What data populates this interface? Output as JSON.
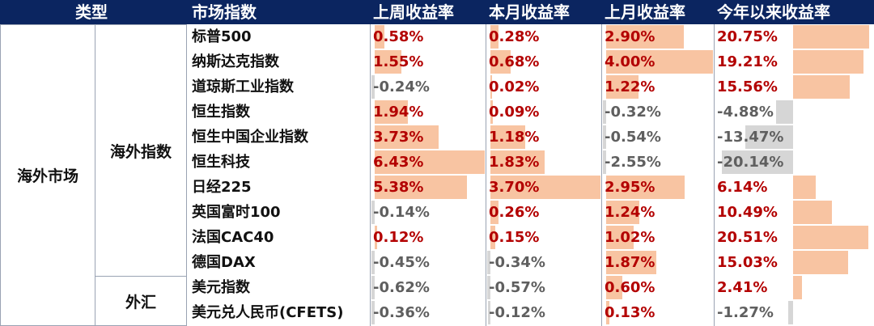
{
  "header": {
    "type": "类型",
    "index": "市场指数",
    "week": "上周收益率",
    "month": "本月收益率",
    "last_month": "上月收益率",
    "ytd": "今年以来收益率"
  },
  "categories": {
    "level1": "海外市场",
    "level2_overseas": "海外指数",
    "level2_fx": "外汇"
  },
  "colors": {
    "header_bg": "#0b2560",
    "positive_bar": "#f8c4a2",
    "negative_bar": "#d6d6d6",
    "positive_text": "#b30000",
    "negative_text": "#5f5f5f"
  },
  "chart_data": {
    "type": "table",
    "columns": [
      "上周收益率",
      "本月收益率",
      "上月收益率",
      "今年以来收益率"
    ],
    "rows": [
      {
        "name": "标普500",
        "week": 0.58,
        "month": 0.28,
        "last_month": 2.9,
        "ytd": 20.75,
        "week_text": "0.58%",
        "month_text": "0.28%",
        "last_month_text": "2.90%",
        "ytd_text": "20.75%"
      },
      {
        "name": "纳斯达克指数",
        "week": 1.55,
        "month": 0.68,
        "last_month": 4.0,
        "ytd": 19.21,
        "week_text": "1.55%",
        "month_text": "0.68%",
        "last_month_text": "4.00%",
        "ytd_text": "19.21%"
      },
      {
        "name": "道琼斯工业指数",
        "week": -0.24,
        "month": 0.02,
        "last_month": 1.22,
        "ytd": 15.56,
        "week_text": "-0.24%",
        "month_text": "0.02%",
        "last_month_text": "1.22%",
        "ytd_text": "15.56%"
      },
      {
        "name": "恒生指数",
        "week": 1.94,
        "month": 0.09,
        "last_month": -0.32,
        "ytd": -4.88,
        "week_text": "1.94%",
        "month_text": "0.09%",
        "last_month_text": "-0.32%",
        "ytd_text": "-4.88%"
      },
      {
        "name": "恒生中国企业指数",
        "week": 3.73,
        "month": 1.18,
        "last_month": -0.54,
        "ytd": -13.47,
        "week_text": "3.73%",
        "month_text": "1.18%",
        "last_month_text": "-0.54%",
        "ytd_text": "-13.47%"
      },
      {
        "name": "恒生科技",
        "week": 6.43,
        "month": 1.83,
        "last_month": -2.55,
        "ytd": -20.14,
        "week_text": "6.43%",
        "month_text": "1.83%",
        "last_month_text": "-2.55%",
        "ytd_text": "-20.14%"
      },
      {
        "name": "日经225",
        "week": 5.38,
        "month": 3.7,
        "last_month": 2.95,
        "ytd": 6.14,
        "week_text": "5.38%",
        "month_text": "3.70%",
        "last_month_text": "2.95%",
        "ytd_text": "6.14%"
      },
      {
        "name": "英国富时100",
        "week": -0.14,
        "month": 0.26,
        "last_month": 1.24,
        "ytd": 10.49,
        "week_text": "-0.14%",
        "month_text": "0.26%",
        "last_month_text": "1.24%",
        "ytd_text": "10.49%"
      },
      {
        "name": "法国CAC40",
        "week": 0.12,
        "month": 0.15,
        "last_month": 1.02,
        "ytd": 20.51,
        "week_text": "0.12%",
        "month_text": "0.15%",
        "last_month_text": "1.02%",
        "ytd_text": "20.51%"
      },
      {
        "name": "德国DAX",
        "week": -0.45,
        "month": -0.34,
        "last_month": 1.87,
        "ytd": 15.03,
        "week_text": "-0.45%",
        "month_text": "-0.34%",
        "last_month_text": "1.87%",
        "ytd_text": "15.03%"
      },
      {
        "name": "美元指数",
        "week": -0.62,
        "month": -0.57,
        "last_month": 0.6,
        "ytd": 2.41,
        "week_text": "-0.62%",
        "month_text": "-0.57%",
        "last_month_text": "0.60%",
        "ytd_text": "2.41%"
      },
      {
        "name": "美元兑人民币(CFETS)",
        "week": -0.36,
        "month": -0.12,
        "last_month": 0.13,
        "ytd": -1.27,
        "week_text": "-0.36%",
        "month_text": "-0.12%",
        "last_month_text": "0.13%",
        "ytd_text": "-1.27%"
      }
    ]
  }
}
